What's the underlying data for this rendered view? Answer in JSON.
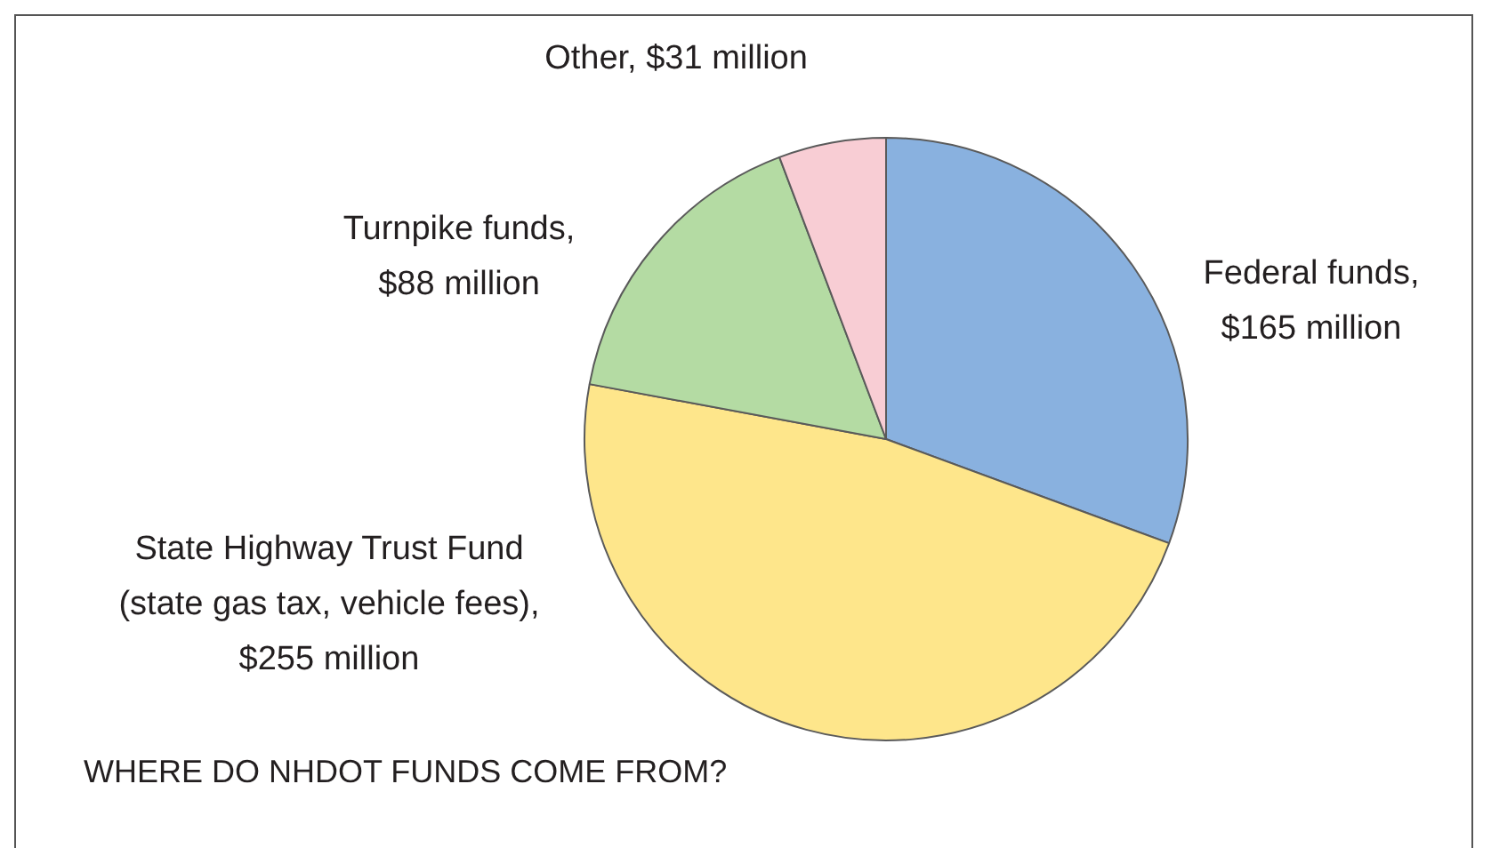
{
  "chart_data": {
    "type": "pie",
    "title": "WHERE DO NHDOT FUNDS COME FROM?",
    "categories": [
      "Federal funds,\n$165 million",
      "State Highway Trust Fund\n(state gas tax, vehicle fees),\n$255 million",
      "Turnpike funds,\n$88 million",
      "Other, $31 million"
    ],
    "values": [
      165,
      255,
      88,
      31
    ],
    "colors": [
      "#89b1df",
      "#fee68b",
      "#b4dba3",
      "#f8cdd4"
    ],
    "legend": false
  }
}
